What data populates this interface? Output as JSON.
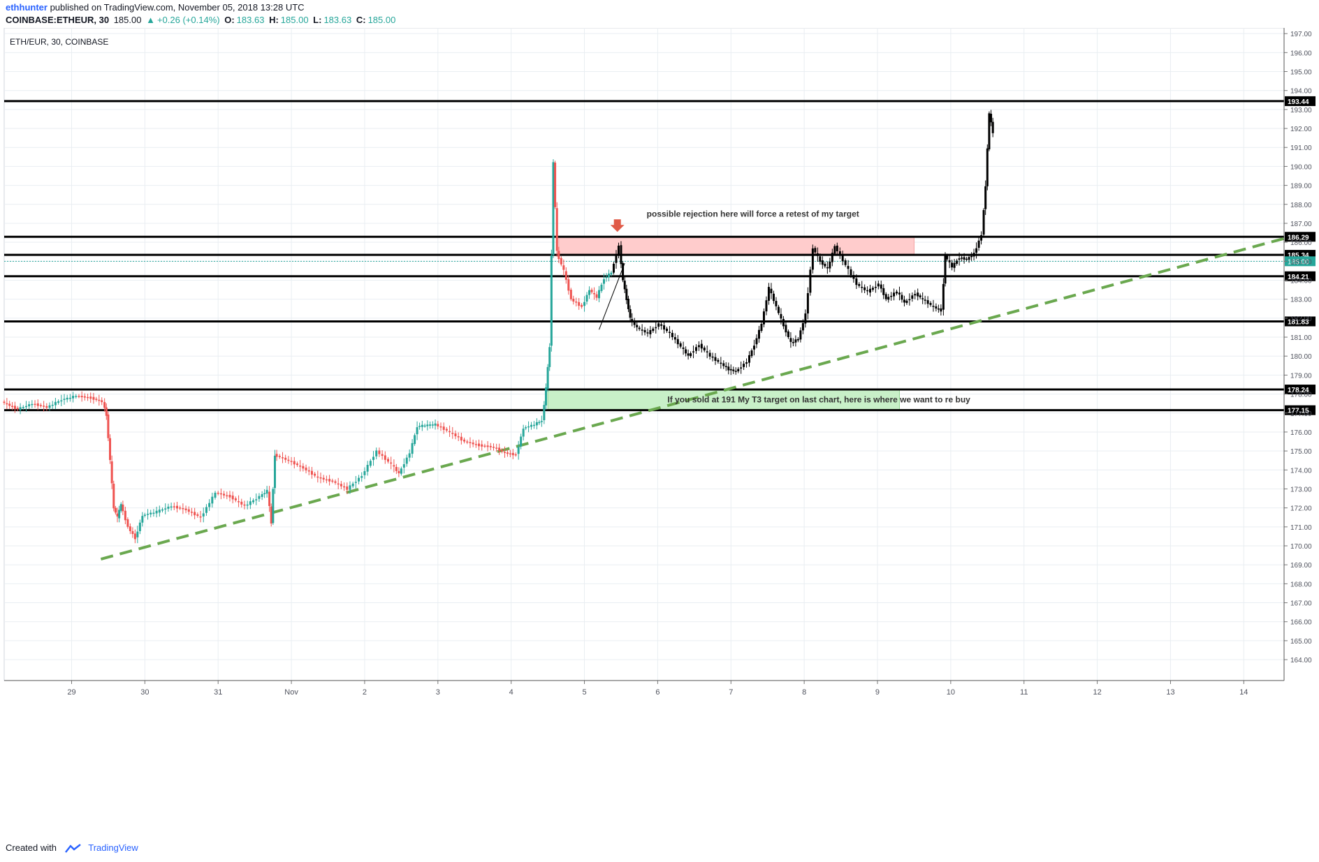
{
  "header": {
    "author": "ethhunter",
    "published_text": "published on TradingView.com, November 05, 2018 13:28 UTC",
    "symbol": "COINBASE:ETHEUR, 30",
    "last": "185.00",
    "change": "+0.26 (+0.14%)",
    "open_label": "O:",
    "open": "183.63",
    "high_label": "H:",
    "high": "185.00",
    "low_label": "L:",
    "low": "183.63",
    "close_label": "C:",
    "close": "185.00"
  },
  "chart_title": "ETH/EUR, 30, COINBASE",
  "footer": {
    "created_with": "Created with",
    "brand": "TradingView"
  },
  "colors": {
    "up": "#26a69a",
    "down": "#ef5350",
    "grid": "#e9eef2",
    "trend": "#6aa84f",
    "sell_zone": "#ffcccc",
    "buy_zone": "#c8f0c8"
  },
  "chart_data": {
    "type": "candlestick",
    "title": "ETH/EUR, 30, COINBASE",
    "ylim": [
      162.9,
      197.3
    ],
    "y_ticks": [
      "164.00",
      "165.00",
      "166.00",
      "167.00",
      "168.00",
      "169.00",
      "170.00",
      "171.00",
      "172.00",
      "173.00",
      "174.00",
      "175.00",
      "176.00",
      "177.00",
      "178.00",
      "179.00",
      "180.00",
      "181.00",
      "182.00",
      "183.00",
      "184.00",
      "185.00",
      "186.00",
      "187.00",
      "188.00",
      "189.00",
      "190.00",
      "191.00",
      "192.00",
      "193.00",
      "194.00",
      "195.00",
      "196.00",
      "197.00"
    ],
    "x_ticks": [
      {
        "label": "29",
        "x": 28.5
      },
      {
        "label": "30",
        "x": 29.5
      },
      {
        "label": "31",
        "x": 30.5
      },
      {
        "label": "Nov",
        "x": 31.5
      },
      {
        "label": "2",
        "x": 32.5
      },
      {
        "label": "3",
        "x": 33.5
      },
      {
        "label": "4",
        "x": 34.5
      },
      {
        "label": "5",
        "x": 35.5
      },
      {
        "label": "6",
        "x": 36.5
      },
      {
        "label": "7",
        "x": 37.5
      },
      {
        "label": "8",
        "x": 38.5
      },
      {
        "label": "9",
        "x": 39.5
      },
      {
        "label": "10",
        "x": 40.5
      },
      {
        "label": "11",
        "x": 41.5
      },
      {
        "label": "12",
        "x": 42.5
      },
      {
        "label": "13",
        "x": 43.5
      },
      {
        "label": "14",
        "x": 44.5
      }
    ],
    "xlim": [
      27.58,
      45.05
    ],
    "price_path": [
      [
        27.58,
        177.6
      ],
      [
        27.8,
        177.2
      ],
      [
        28.0,
        177.5
      ],
      [
        28.2,
        177.3
      ],
      [
        28.4,
        177.7
      ],
      [
        28.6,
        177.9
      ],
      [
        28.8,
        177.8
      ],
      [
        28.95,
        177.6
      ],
      [
        29.0,
        176.9
      ],
      [
        29.05,
        174.5
      ],
      [
        29.1,
        172.0
      ],
      [
        29.15,
        171.5
      ],
      [
        29.2,
        172.2
      ],
      [
        29.3,
        171.0
      ],
      [
        29.4,
        170.4
      ],
      [
        29.5,
        171.6
      ],
      [
        29.7,
        171.8
      ],
      [
        29.9,
        172.1
      ],
      [
        30.1,
        171.9
      ],
      [
        30.3,
        171.5
      ],
      [
        30.5,
        172.8
      ],
      [
        30.7,
        172.6
      ],
      [
        30.9,
        172.1
      ],
      [
        31.1,
        172.6
      ],
      [
        31.2,
        172.9
      ],
      [
        31.25,
        171.2
      ],
      [
        31.3,
        174.8
      ],
      [
        31.5,
        174.5
      ],
      [
        31.7,
        174.1
      ],
      [
        31.9,
        173.6
      ],
      [
        32.1,
        173.4
      ],
      [
        32.3,
        173.0
      ],
      [
        32.5,
        173.7
      ],
      [
        32.7,
        175.0
      ],
      [
        32.9,
        174.3
      ],
      [
        33.0,
        173.8
      ],
      [
        33.15,
        174.9
      ],
      [
        33.25,
        176.3
      ],
      [
        33.5,
        176.4
      ],
      [
        33.7,
        176.0
      ],
      [
        33.9,
        175.5
      ],
      [
        34.1,
        175.3
      ],
      [
        34.3,
        175.2
      ],
      [
        34.45,
        174.9
      ],
      [
        34.6,
        174.8
      ],
      [
        34.7,
        176.2
      ],
      [
        34.85,
        176.4
      ],
      [
        34.95,
        176.6
      ],
      [
        35.0,
        178.3
      ],
      [
        35.05,
        180.5
      ],
      [
        35.1,
        190.2
      ],
      [
        35.15,
        185.5
      ],
      [
        35.25,
        184.5
      ],
      [
        35.35,
        183.0
      ],
      [
        35.5,
        182.6
      ],
      [
        35.6,
        183.5
      ],
      [
        35.7,
        183.1
      ],
      [
        35.8,
        184.1
      ],
      [
        35.9,
        184.4
      ]
    ],
    "projection_path": [
      [
        35.9,
        184.4
      ],
      [
        36.0,
        185.8
      ],
      [
        36.05,
        184.0
      ],
      [
        36.1,
        183.0
      ],
      [
        36.15,
        182.0
      ],
      [
        36.25,
        181.5
      ],
      [
        36.4,
        181.2
      ],
      [
        36.55,
        181.7
      ],
      [
        36.7,
        181.2
      ],
      [
        36.85,
        180.5
      ],
      [
        36.95,
        180.0
      ],
      [
        37.1,
        180.6
      ],
      [
        37.25,
        180.0
      ],
      [
        37.4,
        179.6
      ],
      [
        37.5,
        179.3
      ],
      [
        37.6,
        179.2
      ],
      [
        37.75,
        179.7
      ],
      [
        37.85,
        180.6
      ],
      [
        37.95,
        181.7
      ],
      [
        38.05,
        183.6
      ],
      [
        38.15,
        182.6
      ],
      [
        38.25,
        181.6
      ],
      [
        38.35,
        180.7
      ],
      [
        38.45,
        180.9
      ],
      [
        38.55,
        182.2
      ],
      [
        38.65,
        185.7
      ],
      [
        38.75,
        185.0
      ],
      [
        38.85,
        184.6
      ],
      [
        38.95,
        185.8
      ],
      [
        39.1,
        184.8
      ],
      [
        39.25,
        183.8
      ],
      [
        39.4,
        183.4
      ],
      [
        39.55,
        183.8
      ],
      [
        39.65,
        183.0
      ],
      [
        39.8,
        183.4
      ],
      [
        39.9,
        182.8
      ],
      [
        40.05,
        183.3
      ],
      [
        40.15,
        183.0
      ],
      [
        40.3,
        182.6
      ],
      [
        40.4,
        182.4
      ],
      [
        40.45,
        185.3
      ],
      [
        40.55,
        184.7
      ],
      [
        40.65,
        185.2
      ],
      [
        40.75,
        185.1
      ],
      [
        40.85,
        185.4
      ],
      [
        40.95,
        186.4
      ],
      [
        41.0,
        189.0
      ],
      [
        41.05,
        192.8
      ],
      [
        41.1,
        191.8
      ]
    ],
    "horizontal_levels": [
      {
        "value": 193.44,
        "label": "193.44"
      },
      {
        "value": 186.29,
        "label": "186.29"
      },
      {
        "value": 185.34,
        "label": "185.34"
      },
      {
        "value": 184.21,
        "label": "184.21"
      },
      {
        "value": 181.83,
        "label": "181.83"
      },
      {
        "value": 178.24,
        "label": "178.24"
      },
      {
        "value": 177.15,
        "label": "177.15"
      }
    ],
    "current_price": {
      "value": 185.0,
      "label": "185.00"
    },
    "trendline": {
      "x": [
        28.9,
        45.05
      ],
      "y": [
        169.3,
        186.2
      ]
    },
    "zones": [
      {
        "type": "sell",
        "x": [
          35.15,
          40.0
        ],
        "y": [
          185.34,
          186.29
        ]
      },
      {
        "type": "buy",
        "x": [
          35.0,
          39.8
        ],
        "y": [
          177.15,
          178.24
        ]
      }
    ],
    "annotations": [
      {
        "text": "possible rejection here will force a retest of my target",
        "x": 37.8,
        "y": 187.5
      },
      {
        "text": "If you sold at 191 My T3 target on last chart, here is where we want to re buy",
        "x": 38.7,
        "y": 177.7
      }
    ],
    "arrow_marker": {
      "x": 35.95,
      "y": 186.55
    }
  }
}
